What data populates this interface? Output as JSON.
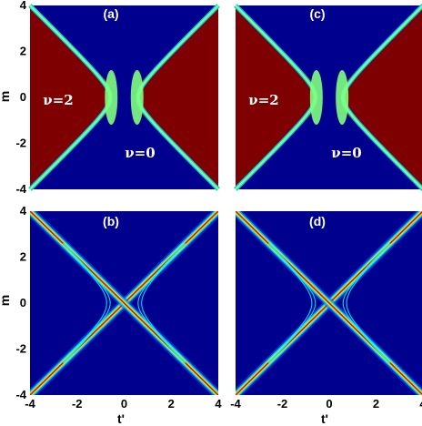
{
  "chart_data": [
    {
      "panel": "(a)",
      "type": "heatmap",
      "xlabel": "",
      "ylabel": "m",
      "xlim": [
        -4,
        4
      ],
      "ylim": [
        -4,
        4
      ],
      "xticks": [],
      "yticks": [
        "4",
        "2",
        "0",
        "-2",
        "-4"
      ],
      "colormap": "jet",
      "regions": [
        {
          "label": "ν=2",
          "x": -2.3,
          "y": 0
        },
        {
          "label": "ν=0",
          "x": 0.5,
          "y": -1.9
        }
      ],
      "phase_boundary": "red region where |m| < |t'|, bounded by |m| = |t'|; green band near t' = ±0.5"
    },
    {
      "panel": "(b)",
      "type": "heatmap",
      "xlabel": "t'",
      "ylabel": "m",
      "xlim": [
        -4,
        4
      ],
      "ylim": [
        -4,
        4
      ],
      "xticks": [
        "-4",
        "-2",
        "0",
        "2",
        "4"
      ],
      "yticks": [
        "4",
        "2",
        "0",
        "-2",
        "-4"
      ],
      "colormap": "jet",
      "regions": []
    },
    {
      "panel": "(c)",
      "type": "heatmap",
      "xlabel": "",
      "ylabel": "",
      "xlim": [
        -4,
        4
      ],
      "ylim": [
        -4,
        4
      ],
      "xticks": [],
      "yticks": [],
      "colormap": "jet",
      "regions": [
        {
          "label": "ν=2",
          "x": -2.3,
          "y": 0
        },
        {
          "label": "ν=0",
          "x": 0.5,
          "y": -1.9
        }
      ]
    },
    {
      "panel": "(d)",
      "type": "heatmap",
      "xlabel": "t'",
      "ylabel": "",
      "xlim": [
        -4,
        4
      ],
      "ylim": [
        -4,
        4
      ],
      "xticks": [
        "-4",
        "-2",
        "0",
        "2",
        "4"
      ],
      "yticks": [],
      "colormap": "jet",
      "regions": []
    }
  ],
  "colors": {
    "background": "#00008f",
    "high": "#7f0000",
    "mid": "#7fff7f",
    "line_red": "#cc0000",
    "line_cyan": "#00ffff"
  }
}
